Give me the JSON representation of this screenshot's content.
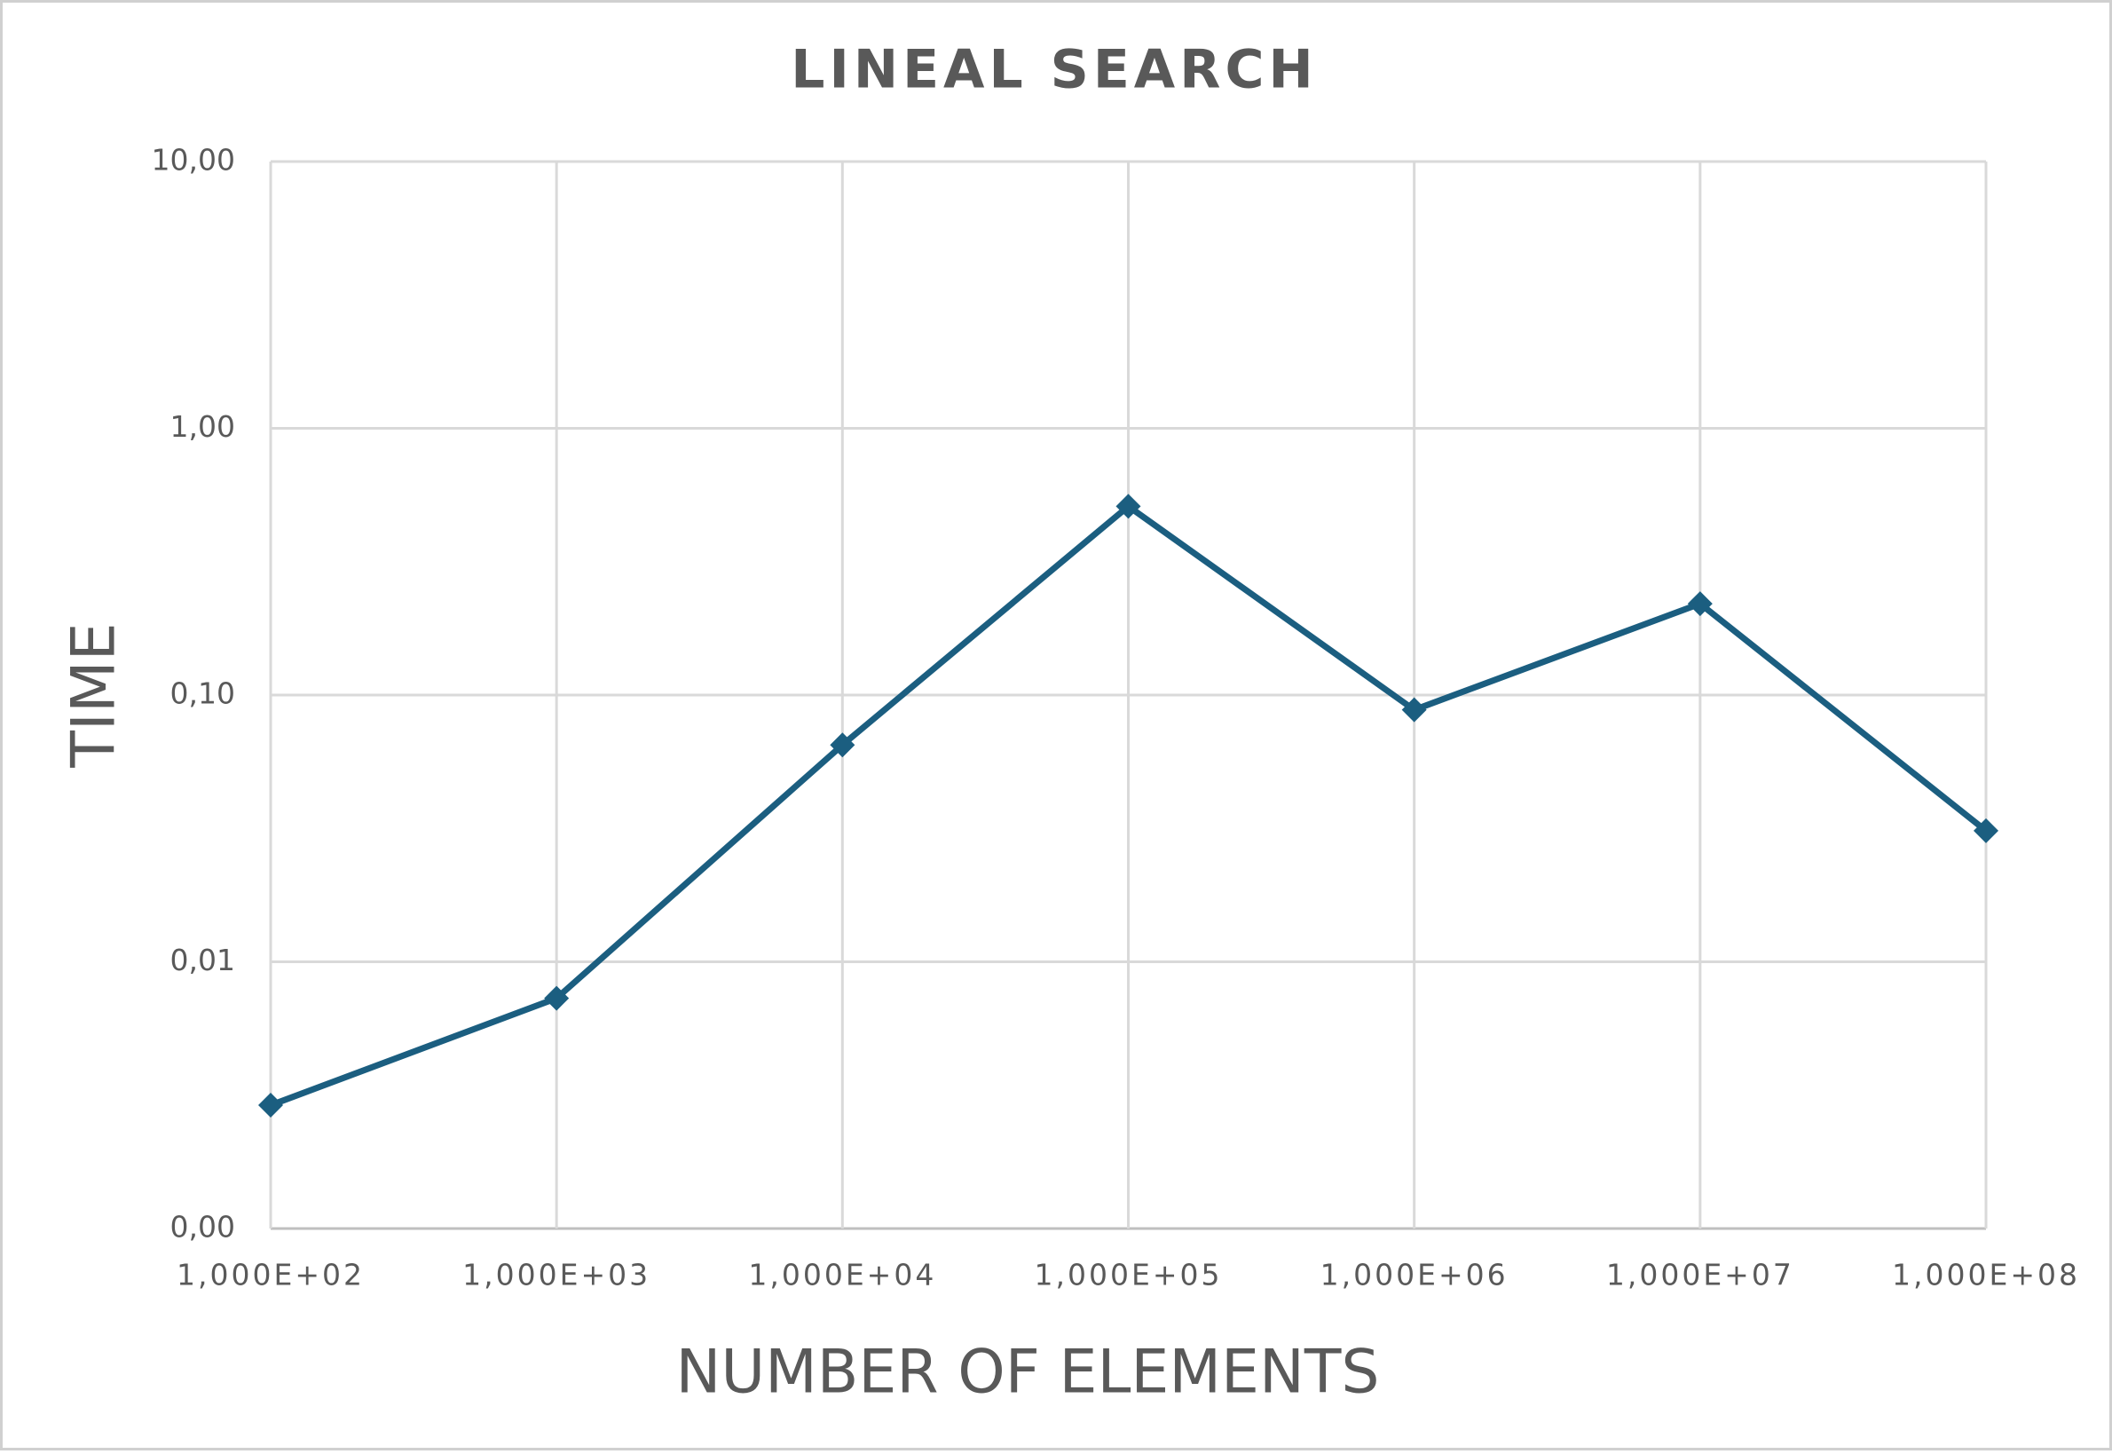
{
  "chart_data": {
    "type": "line",
    "title": "LINEAL SEARCH",
    "x_label": "NUMBER OF ELEMENTS",
    "y_label": "TIME",
    "x": [
      100,
      1000,
      10000,
      100000,
      1000000,
      10000000,
      100000000
    ],
    "values": [
      0.0029,
      0.0073,
      0.065,
      0.51,
      0.088,
      0.22,
      0.031
    ],
    "color": "#1b5e80",
    "xlog": true,
    "ylog": true,
    "grid": true,
    "xlim": [
      100,
      100000000
    ],
    "xticks": [
      {
        "value": 100,
        "label": "1,000E+02"
      },
      {
        "value": 1000,
        "label": "1,000E+03"
      },
      {
        "value": 10000,
        "label": "1,000E+04"
      },
      {
        "value": 100000,
        "label": "1,000E+05"
      },
      {
        "value": 1000000,
        "label": "1,000E+06"
      },
      {
        "value": 10000000,
        "label": "1,000E+07"
      },
      {
        "value": 100000000,
        "label": "1,000E+08"
      }
    ],
    "ylim": [
      0.001,
      10
    ],
    "yticks": [
      {
        "value": 0.001,
        "label": "0,00"
      },
      {
        "value": 0.01,
        "label": "0,01"
      },
      {
        "value": 0.1,
        "label": "0,10"
      },
      {
        "value": 1,
        "label": "1,00"
      },
      {
        "value": 10,
        "label": "10,00"
      }
    ]
  }
}
